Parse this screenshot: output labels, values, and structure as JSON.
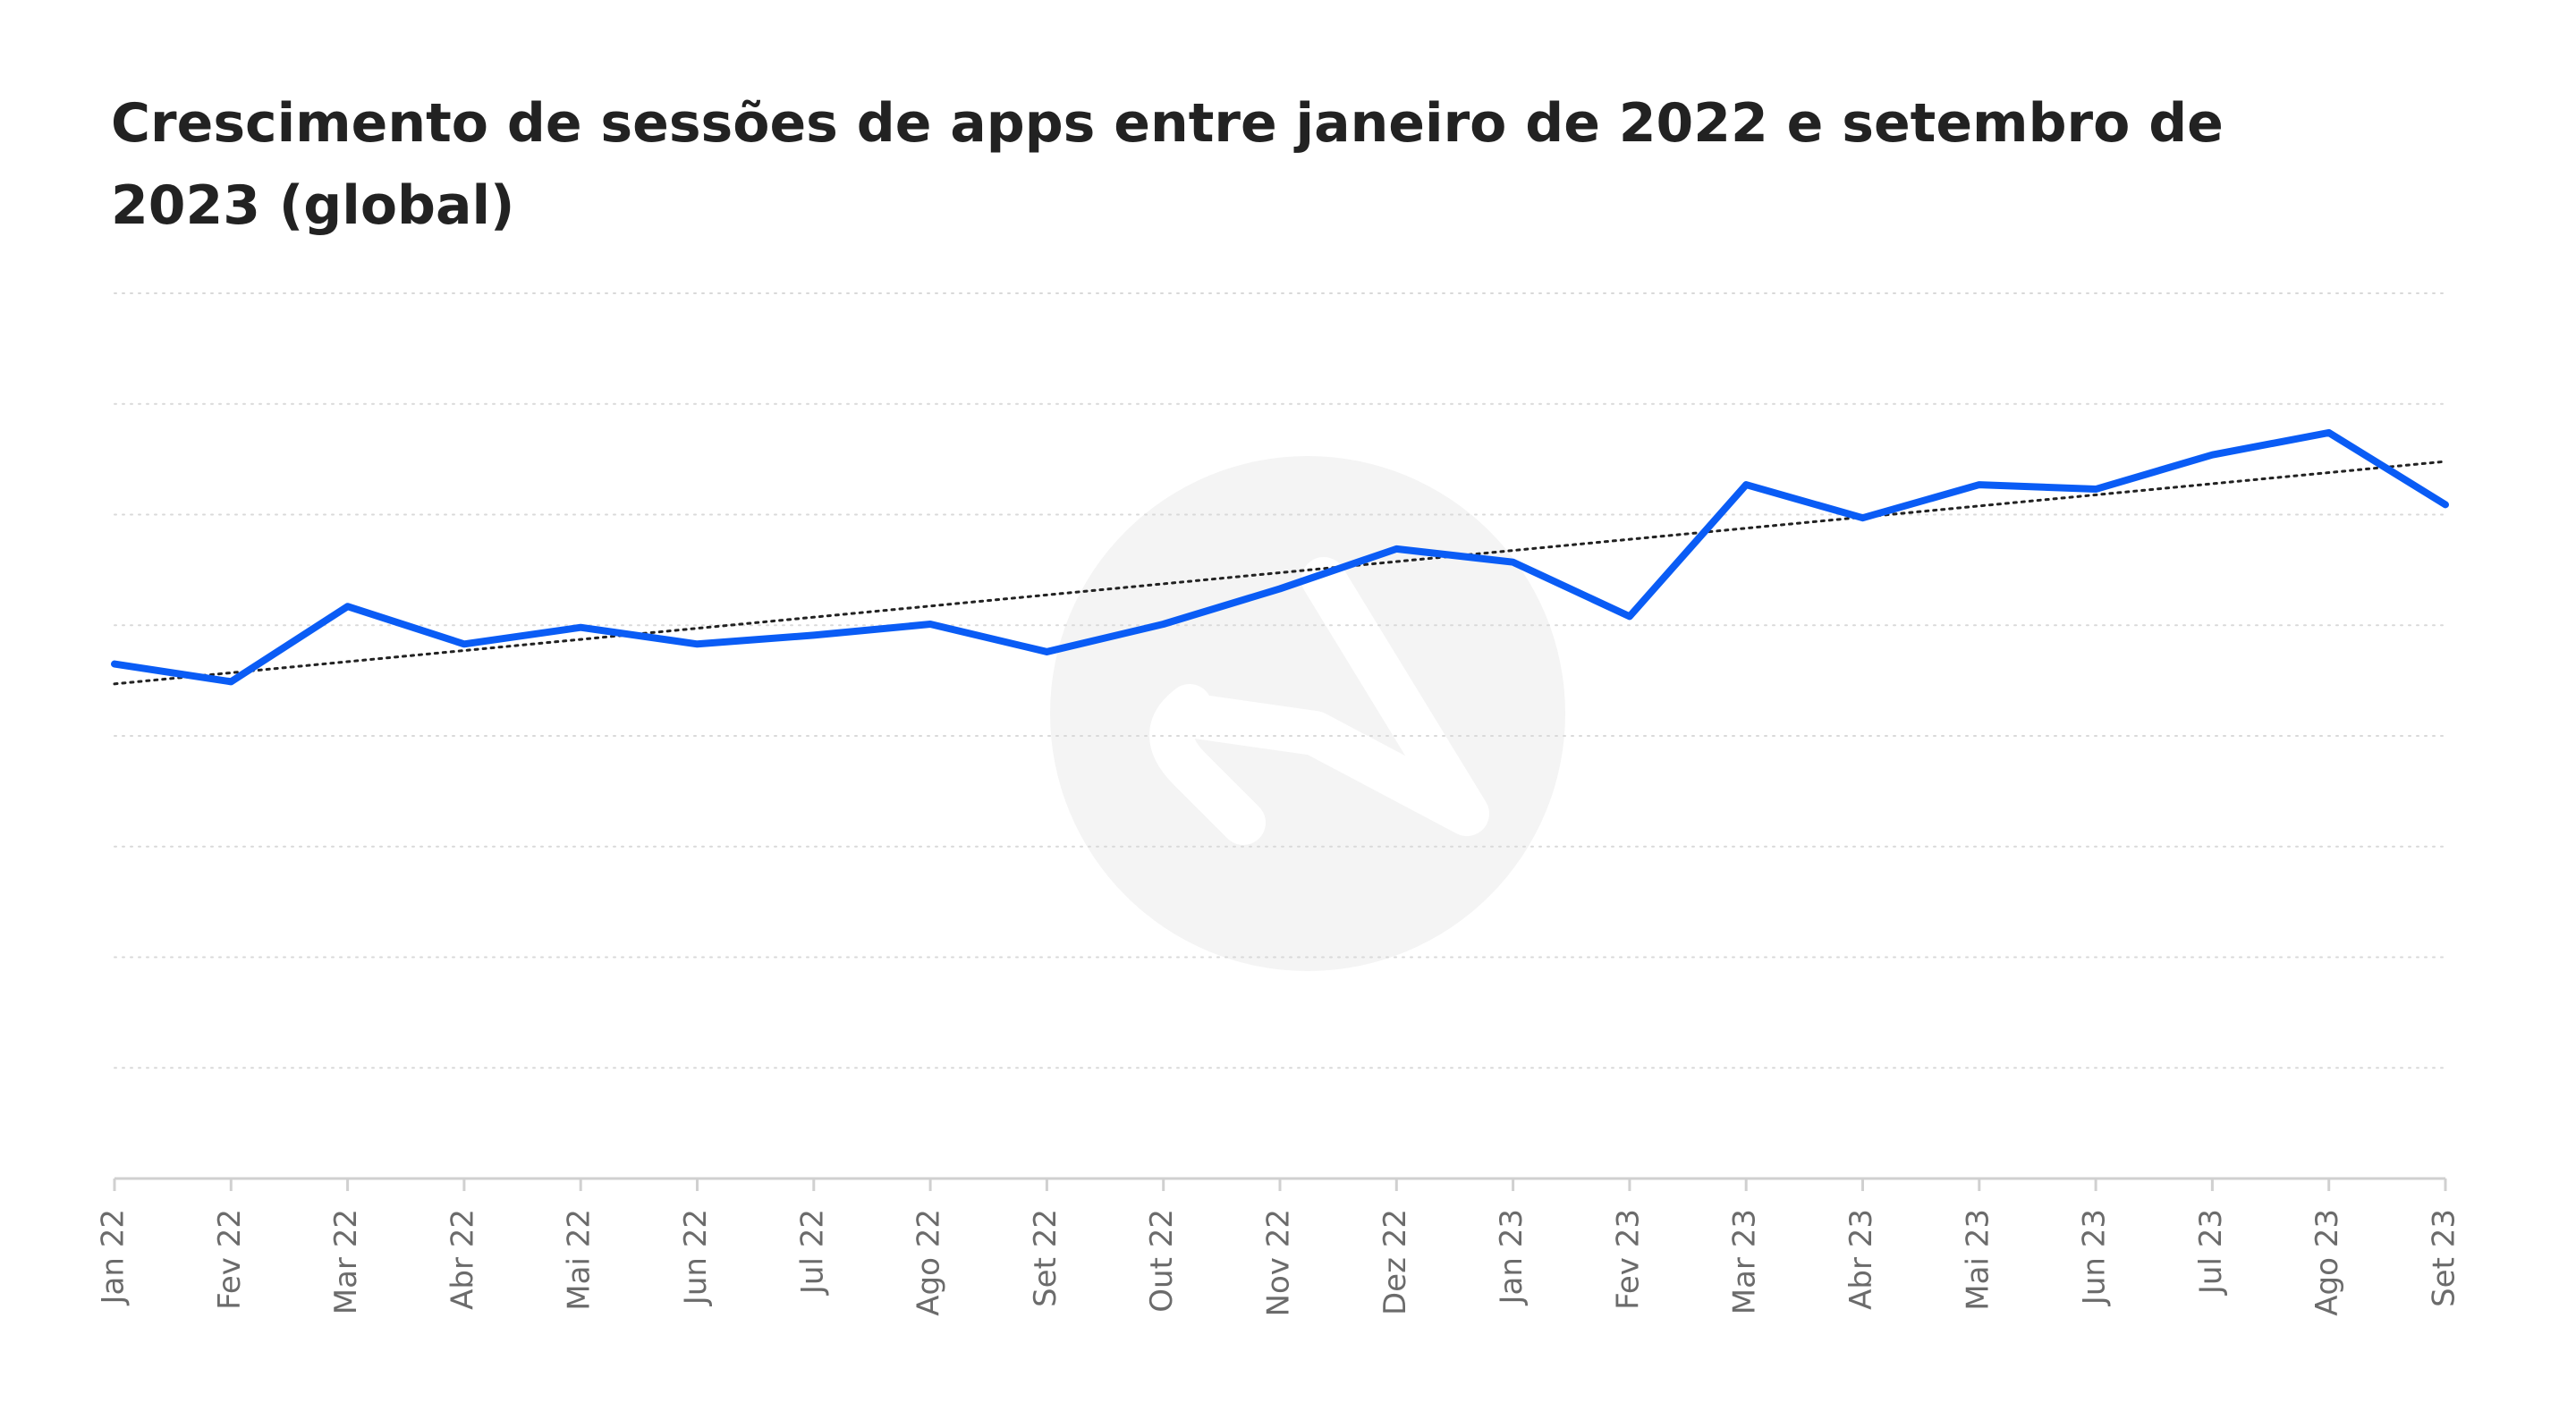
{
  "title": "Crescimento de sessões de apps entre janeiro de 2022 e setembro de 2023 (global)",
  "chart_data": {
    "type": "line",
    "categories": [
      "Jan 22",
      "Fev 22",
      "Mar 22",
      "Abr 22",
      "Mai 22",
      "Jun 22",
      "Jul 22",
      "Ago 22",
      "Set 22",
      "Out 22",
      "Nov 22",
      "Dez 22",
      "Jan 23",
      "Fev 23",
      "Mar 23",
      "Abr 23",
      "Mai 23",
      "Jun 23",
      "Jul 23",
      "Ago 23",
      "Set 23"
    ],
    "series": [
      {
        "values": [
          4.65,
          4.49,
          5.17,
          4.83,
          4.98,
          4.83,
          4.91,
          5.01,
          4.76,
          5.01,
          5.33,
          5.69,
          5.57,
          5.08,
          6.27,
          5.97,
          6.27,
          6.23,
          6.54,
          6.74,
          6.09
        ],
        "color": "#0a5cf5"
      }
    ],
    "trendline": {
      "start": 4.47,
      "end": 6.48,
      "color": "#222222",
      "style": "dotted"
    },
    "ylim": [
      0,
      8
    ],
    "grid_lines": 8,
    "grid": true,
    "xlabel": "",
    "ylabel": "",
    "y_tick_labels_shown": false,
    "x_tick_rotation": -90
  }
}
